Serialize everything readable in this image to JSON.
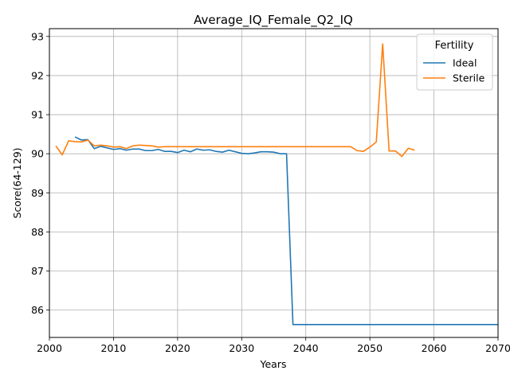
{
  "chart_data": {
    "type": "line",
    "title": "Average_IQ_Female_Q2_IQ",
    "xlabel": "Years",
    "ylabel": "Score(64-129)",
    "xlim": [
      2000,
      2070
    ],
    "ylim": [
      85.3,
      93.2
    ],
    "xticks": [
      2000,
      2010,
      2020,
      2030,
      2040,
      2050,
      2060,
      2070
    ],
    "yticks": [
      86,
      87,
      88,
      89,
      90,
      91,
      92,
      93
    ],
    "grid": true,
    "legend": {
      "title": "Fertility",
      "placement": "top-right"
    },
    "series": [
      {
        "name": "Ideal",
        "color": "#1f77b4",
        "x": [
          2004,
          2005,
          2006,
          2007,
          2008,
          2009,
          2010,
          2011,
          2012,
          2013,
          2014,
          2015,
          2016,
          2017,
          2018,
          2019,
          2020,
          2021,
          2022,
          2023,
          2024,
          2025,
          2026,
          2027,
          2028,
          2029,
          2030,
          2031,
          2032,
          2033,
          2034,
          2035,
          2036,
          2037,
          2038,
          2039,
          2040,
          2045,
          2050,
          2055,
          2060,
          2065,
          2070
        ],
        "y": [
          90.43,
          90.35,
          90.36,
          90.13,
          90.19,
          90.15,
          90.11,
          90.13,
          90.09,
          90.12,
          90.12,
          90.08,
          90.08,
          90.11,
          90.06,
          90.06,
          90.03,
          90.09,
          90.05,
          90.12,
          90.09,
          90.1,
          90.06,
          90.04,
          90.09,
          90.05,
          90.01,
          90.0,
          90.02,
          90.05,
          90.05,
          90.04,
          90.0,
          90.0,
          85.63,
          85.63,
          85.63,
          85.63,
          85.63,
          85.63,
          85.63,
          85.63,
          85.63
        ]
      },
      {
        "name": "Sterile",
        "color": "#ff7f0e",
        "x": [
          2001,
          2002,
          2003,
          2004,
          2005,
          2006,
          2007,
          2008,
          2009,
          2010,
          2011,
          2012,
          2013,
          2014,
          2015,
          2016,
          2017,
          2018,
          2019,
          2020,
          2025,
          2030,
          2035,
          2040,
          2045,
          2047,
          2048,
          2049,
          2050,
          2051,
          2052,
          2053,
          2054,
          2055,
          2056,
          2057
        ],
        "y": [
          90.2,
          89.97,
          90.33,
          90.31,
          90.3,
          90.35,
          90.2,
          90.22,
          90.2,
          90.17,
          90.18,
          90.13,
          90.2,
          90.22,
          90.21,
          90.2,
          90.17,
          90.18,
          90.18,
          90.18,
          90.18,
          90.18,
          90.18,
          90.18,
          90.18,
          90.18,
          90.08,
          90.06,
          90.17,
          90.3,
          92.81,
          90.07,
          90.07,
          89.93,
          90.14,
          90.09
        ]
      }
    ]
  }
}
